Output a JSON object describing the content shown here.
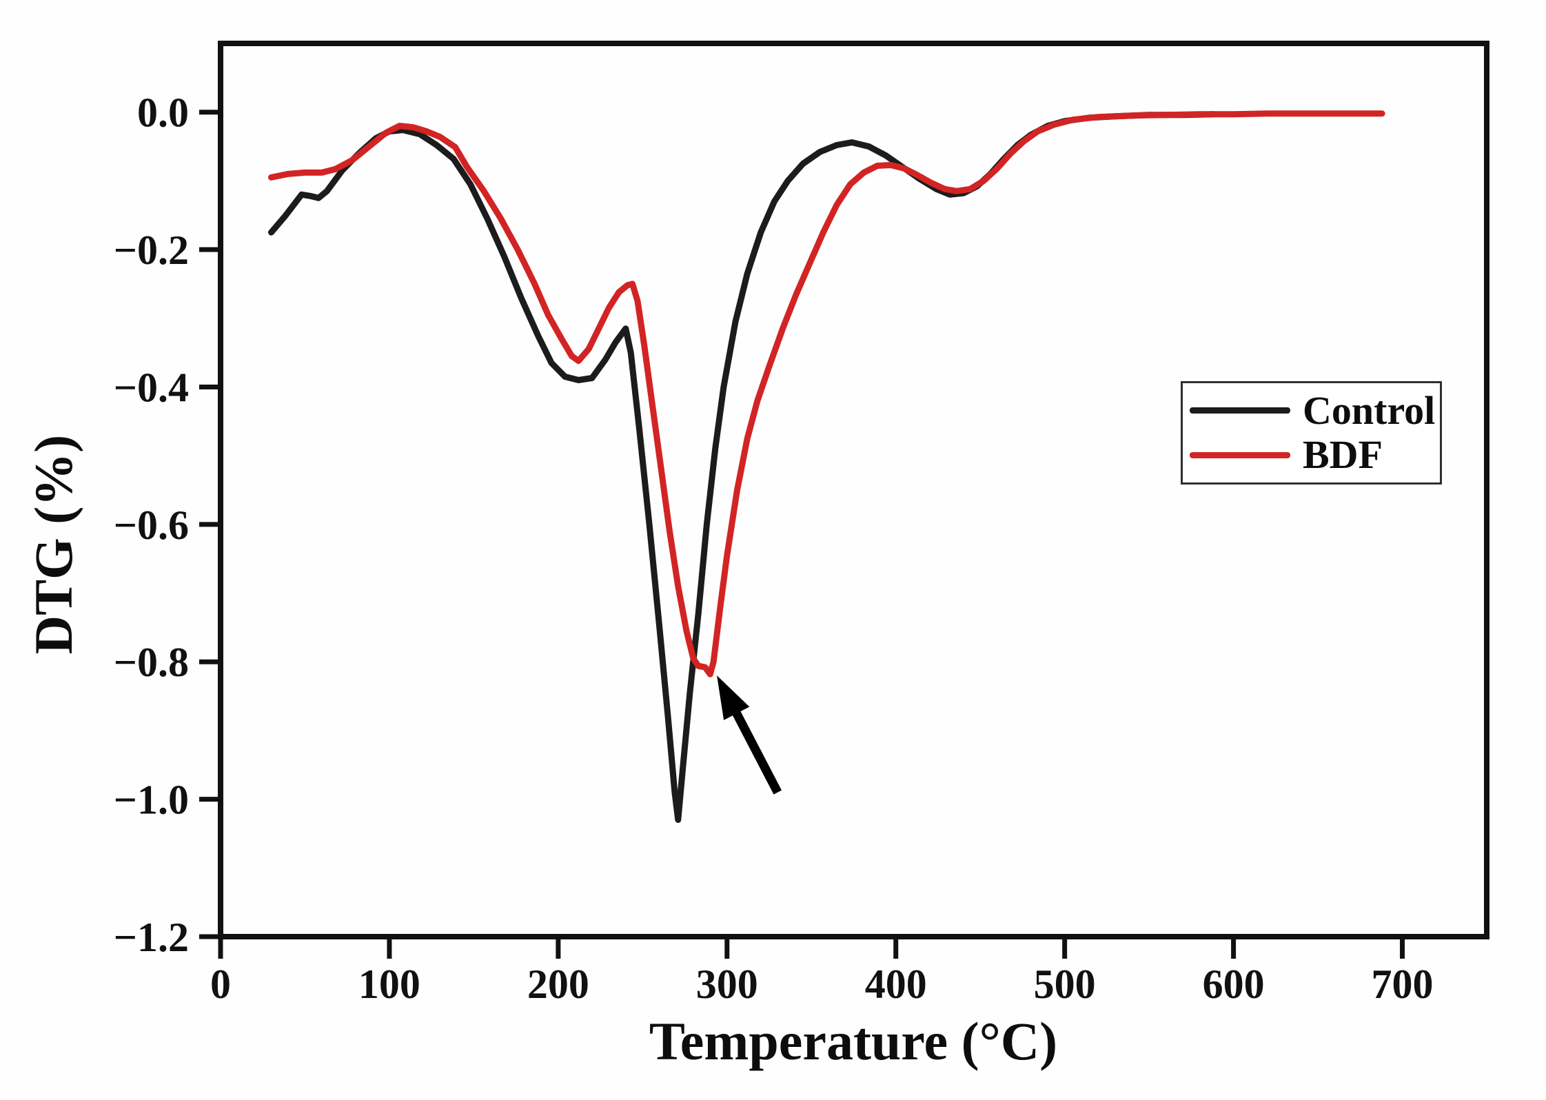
{
  "chart_data": {
    "type": "line",
    "title": "",
    "xlabel": "Temperature (°C)",
    "ylabel": "DTG (%)",
    "xlim": [
      0,
      750
    ],
    "ylim": [
      -1.2,
      0.1
    ],
    "grid": false,
    "frame_color": "#111111",
    "background": "#fefefe",
    "legend_position": "upper right",
    "x_ticks": [
      {
        "value": 0,
        "label": "0"
      },
      {
        "value": 100,
        "label": "100"
      },
      {
        "value": 200,
        "label": "200"
      },
      {
        "value": 300,
        "label": "300"
      },
      {
        "value": 400,
        "label": "400"
      },
      {
        "value": 500,
        "label": "500"
      },
      {
        "value": 600,
        "label": "600"
      },
      {
        "value": 700,
        "label": "700"
      }
    ],
    "y_ticks": [
      {
        "value": 0.0,
        "label": "0.0"
      },
      {
        "value": -0.2,
        "label": "−0.2"
      },
      {
        "value": -0.4,
        "label": "−0.4"
      },
      {
        "value": -0.6,
        "label": "−0.6"
      },
      {
        "value": -0.8,
        "label": "−0.8"
      },
      {
        "value": -1.0,
        "label": "−1.0"
      },
      {
        "value": -1.2,
        "label": "−1.2"
      }
    ],
    "series": [
      {
        "name": "Control",
        "color": "#1c1c1c",
        "points": [
          [
            30,
            -0.175
          ],
          [
            38,
            -0.152
          ],
          [
            48,
            -0.12
          ],
          [
            53,
            -0.122
          ],
          [
            58,
            -0.125
          ],
          [
            63,
            -0.115
          ],
          [
            72,
            -0.085
          ],
          [
            82,
            -0.06
          ],
          [
            92,
            -0.038
          ],
          [
            100,
            -0.028
          ],
          [
            108,
            -0.026
          ],
          [
            118,
            -0.032
          ],
          [
            128,
            -0.048
          ],
          [
            138,
            -0.068
          ],
          [
            148,
            -0.105
          ],
          [
            158,
            -0.155
          ],
          [
            168,
            -0.21
          ],
          [
            178,
            -0.27
          ],
          [
            188,
            -0.325
          ],
          [
            196,
            -0.365
          ],
          [
            204,
            -0.385
          ],
          [
            212,
            -0.39
          ],
          [
            220,
            -0.387
          ],
          [
            228,
            -0.36
          ],
          [
            234,
            -0.335
          ],
          [
            240,
            -0.315
          ],
          [
            243,
            -0.35
          ],
          [
            248,
            -0.46
          ],
          [
            254,
            -0.6
          ],
          [
            260,
            -0.75
          ],
          [
            265,
            -0.88
          ],
          [
            269,
            -0.99
          ],
          [
            271,
            -1.03
          ],
          [
            274,
            -0.95
          ],
          [
            278,
            -0.845
          ],
          [
            283,
            -0.73
          ],
          [
            288,
            -0.6
          ],
          [
            293,
            -0.49
          ],
          [
            298,
            -0.4
          ],
          [
            305,
            -0.305
          ],
          [
            312,
            -0.235
          ],
          [
            320,
            -0.175
          ],
          [
            328,
            -0.13
          ],
          [
            336,
            -0.1
          ],
          [
            345,
            -0.075
          ],
          [
            355,
            -0.058
          ],
          [
            365,
            -0.048
          ],
          [
            374,
            -0.044
          ],
          [
            384,
            -0.05
          ],
          [
            394,
            -0.063
          ],
          [
            404,
            -0.08
          ],
          [
            414,
            -0.097
          ],
          [
            424,
            -0.112
          ],
          [
            432,
            -0.12
          ],
          [
            440,
            -0.118
          ],
          [
            448,
            -0.108
          ],
          [
            456,
            -0.09
          ],
          [
            464,
            -0.068
          ],
          [
            472,
            -0.048
          ],
          [
            480,
            -0.033
          ],
          [
            490,
            -0.02
          ],
          [
            500,
            -0.013
          ],
          [
            515,
            -0.008
          ],
          [
            530,
            -0.006
          ],
          [
            550,
            -0.004
          ],
          [
            570,
            -0.004
          ],
          [
            588,
            -0.003
          ]
        ]
      },
      {
        "name": "BDF",
        "color": "#d22424",
        "points": [
          [
            30,
            -0.095
          ],
          [
            40,
            -0.09
          ],
          [
            50,
            -0.088
          ],
          [
            60,
            -0.088
          ],
          [
            68,
            -0.083
          ],
          [
            78,
            -0.07
          ],
          [
            88,
            -0.05
          ],
          [
            98,
            -0.03
          ],
          [
            106,
            -0.02
          ],
          [
            114,
            -0.022
          ],
          [
            122,
            -0.028
          ],
          [
            130,
            -0.036
          ],
          [
            139,
            -0.051
          ],
          [
            146,
            -0.08
          ],
          [
            156,
            -0.115
          ],
          [
            166,
            -0.155
          ],
          [
            176,
            -0.2
          ],
          [
            186,
            -0.25
          ],
          [
            194,
            -0.295
          ],
          [
            202,
            -0.33
          ],
          [
            208,
            -0.355
          ],
          [
            212,
            -0.362
          ],
          [
            218,
            -0.345
          ],
          [
            224,
            -0.315
          ],
          [
            230,
            -0.285
          ],
          [
            236,
            -0.262
          ],
          [
            241,
            -0.252
          ],
          [
            244,
            -0.25
          ],
          [
            247,
            -0.275
          ],
          [
            251,
            -0.34
          ],
          [
            256,
            -0.43
          ],
          [
            261,
            -0.52
          ],
          [
            266,
            -0.61
          ],
          [
            271,
            -0.69
          ],
          [
            276,
            -0.755
          ],
          [
            280,
            -0.795
          ],
          [
            283,
            -0.806
          ],
          [
            287,
            -0.808
          ],
          [
            290,
            -0.818
          ],
          [
            292,
            -0.8
          ],
          [
            296,
            -0.72
          ],
          [
            300,
            -0.645
          ],
          [
            306,
            -0.55
          ],
          [
            312,
            -0.475
          ],
          [
            318,
            -0.42
          ],
          [
            325,
            -0.37
          ],
          [
            333,
            -0.315
          ],
          [
            341,
            -0.265
          ],
          [
            349,
            -0.22
          ],
          [
            357,
            -0.175
          ],
          [
            365,
            -0.135
          ],
          [
            373,
            -0.105
          ],
          [
            381,
            -0.088
          ],
          [
            389,
            -0.078
          ],
          [
            397,
            -0.077
          ],
          [
            405,
            -0.082
          ],
          [
            413,
            -0.092
          ],
          [
            421,
            -0.103
          ],
          [
            429,
            -0.112
          ],
          [
            436,
            -0.115
          ],
          [
            444,
            -0.112
          ],
          [
            452,
            -0.1
          ],
          [
            460,
            -0.082
          ],
          [
            468,
            -0.06
          ],
          [
            476,
            -0.042
          ],
          [
            484,
            -0.028
          ],
          [
            494,
            -0.018
          ],
          [
            505,
            -0.011
          ],
          [
            520,
            -0.007
          ],
          [
            540,
            -0.005
          ],
          [
            560,
            -0.004
          ],
          [
            580,
            -0.003
          ],
          [
            600,
            -0.003
          ],
          [
            620,
            -0.002
          ],
          [
            645,
            -0.002
          ],
          [
            668,
            -0.002
          ],
          [
            688,
            -0.002
          ]
        ]
      }
    ],
    "annotation": {
      "type": "arrow",
      "description": "arrow pointing to BDF peak minimum",
      "tip": [
        294,
        -0.82
      ],
      "tail": [
        330,
        -0.99
      ],
      "color": "#000000"
    }
  },
  "legend": {
    "border_color": "#2f2f2f"
  }
}
